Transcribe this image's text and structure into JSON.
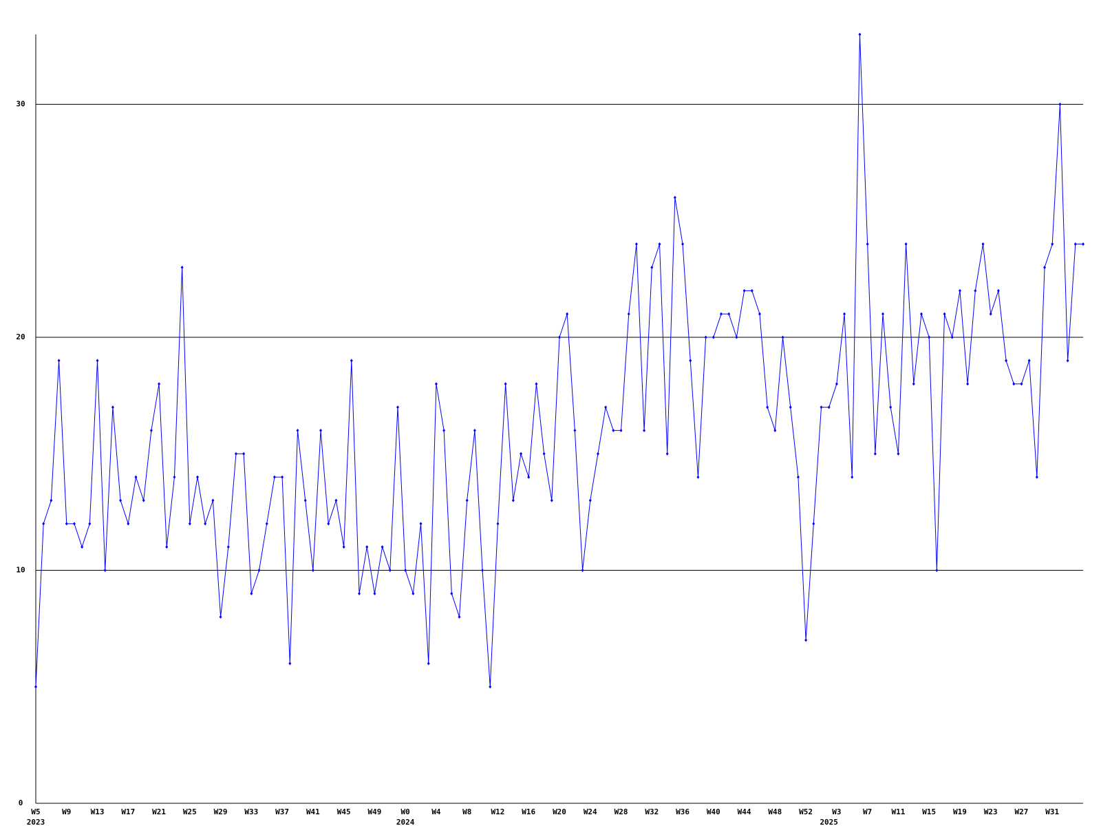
{
  "chart_data": {
    "type": "line",
    "categories": [
      "W5",
      null,
      null,
      null,
      "W9",
      null,
      null,
      null,
      "W13",
      null,
      null,
      null,
      "W17",
      null,
      null,
      null,
      "W21",
      null,
      null,
      null,
      "W25",
      null,
      null,
      null,
      "W29",
      null,
      null,
      null,
      "W33",
      null,
      null,
      null,
      "W37",
      null,
      null,
      null,
      "W41",
      null,
      null,
      null,
      "W45",
      null,
      null,
      null,
      "W49",
      null,
      null,
      null,
      "W0",
      null,
      null,
      null,
      "W4",
      null,
      null,
      null,
      "W8",
      null,
      null,
      null,
      "W12",
      null,
      null,
      null,
      "W16",
      null,
      null,
      null,
      "W20",
      null,
      null,
      null,
      "W24",
      null,
      null,
      null,
      "W28",
      null,
      null,
      null,
      "W32",
      null,
      null,
      null,
      "W36",
      null,
      null,
      null,
      "W40",
      null,
      null,
      null,
      "W44",
      null,
      null,
      null,
      "W48",
      null,
      null,
      null,
      "W52",
      null,
      null,
      null,
      "W3",
      null,
      null,
      null,
      "W7",
      null,
      null,
      null,
      "W11",
      null,
      null,
      null,
      "W15",
      null,
      null,
      null,
      "W19",
      null,
      null,
      null,
      "W23",
      null,
      null,
      null,
      "W27",
      null,
      null,
      null,
      "W31",
      null,
      null,
      null,
      null
    ],
    "years": [
      "2023",
      null,
      null,
      null,
      null,
      null,
      null,
      null,
      null,
      null,
      null,
      null,
      null,
      null,
      null,
      null,
      null,
      null,
      null,
      null,
      null,
      null,
      null,
      null,
      null,
      null,
      null,
      null,
      null,
      null,
      null,
      null,
      null,
      null,
      null,
      null,
      null,
      null,
      null,
      null,
      null,
      null,
      null,
      null,
      null,
      null,
      null,
      null,
      "2024",
      null,
      null,
      null,
      null,
      null,
      null,
      null,
      null,
      null,
      null,
      null,
      null,
      null,
      null,
      null,
      null,
      null,
      null,
      null,
      null,
      null,
      null,
      null,
      null,
      null,
      null,
      null,
      null,
      null,
      null,
      null,
      null,
      null,
      null,
      null,
      null,
      null,
      null,
      null,
      null,
      null,
      null,
      null,
      null,
      null,
      null,
      null,
      null,
      null,
      null,
      null,
      null,
      null,
      null,
      "2025",
      null,
      null,
      null,
      null,
      null,
      null,
      null,
      null,
      null,
      null,
      null,
      null,
      null,
      null,
      null,
      null,
      null,
      null,
      null,
      null,
      null,
      null,
      null,
      null,
      null,
      null,
      null,
      null,
      null,
      null,
      null,
      null,
      null,
      null,
      null
    ],
    "series": [
      {
        "color": "#0000ff",
        "values": [
          5,
          12,
          13,
          19,
          12,
          12,
          11,
          12,
          19,
          10,
          17,
          13,
          12,
          14,
          13,
          16,
          18,
          11,
          14,
          23,
          12,
          14,
          12,
          13,
          8,
          11,
          15,
          15,
          9,
          10,
          12,
          14,
          14,
          6,
          16,
          13,
          10,
          16,
          12,
          13,
          11,
          19,
          9,
          11,
          9,
          11,
          10,
          17,
          10,
          9,
          12,
          6,
          18,
          16,
          9,
          8,
          13,
          16,
          10,
          5,
          12,
          18,
          13,
          15,
          14,
          18,
          15,
          13,
          20,
          21,
          16,
          10,
          13,
          15,
          17,
          16,
          16,
          21,
          24,
          16,
          23,
          24,
          15,
          26,
          24,
          19,
          14,
          20,
          20,
          21,
          21,
          20,
          22,
          22,
          21,
          17,
          16,
          20,
          17,
          14,
          7,
          12,
          17,
          17,
          18,
          21,
          14,
          33,
          24,
          15,
          21,
          17,
          15,
          24,
          18,
          21,
          20,
          10,
          21,
          20,
          22,
          18,
          22,
          24,
          21,
          22,
          19,
          18,
          18,
          19,
          14,
          23,
          24,
          30,
          19,
          24,
          24
        ]
      }
    ],
    "ylim": [
      0,
      33
    ],
    "yticks": [
      0,
      10,
      20,
      30
    ],
    "grid": true
  }
}
